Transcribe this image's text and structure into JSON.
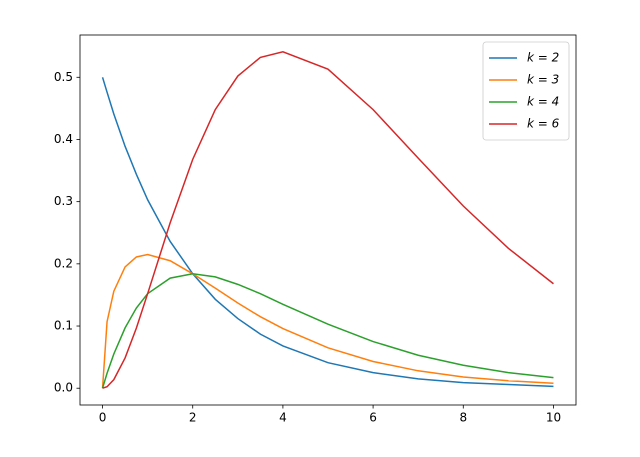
{
  "chart_data": {
    "type": "line",
    "x": [
      0,
      0.1,
      0.25,
      0.5,
      0.75,
      1,
      1.5,
      2,
      2.5,
      3,
      3.5,
      4,
      5,
      6,
      7,
      8,
      9,
      10
    ],
    "series": [
      {
        "name": "k = 2",
        "color": "#1f77b4",
        "values": [
          0.5,
          0.476,
          0.441,
          0.389,
          0.344,
          0.303,
          0.236,
          0.184,
          0.143,
          0.112,
          0.087,
          0.068,
          0.041,
          0.025,
          0.015,
          0.009,
          0.006,
          0.003
        ]
      },
      {
        "name": "k = 3",
        "color": "#ff7f0e",
        "values": [
          0,
          0.107,
          0.156,
          0.195,
          0.211,
          0.215,
          0.205,
          0.184,
          0.161,
          0.137,
          0.115,
          0.096,
          0.065,
          0.043,
          0.028,
          0.018,
          0.012,
          0.008
        ]
      },
      {
        "name": "k = 4",
        "color": "#2ca02c",
        "values": [
          0,
          0.024,
          0.055,
          0.097,
          0.129,
          0.152,
          0.177,
          0.184,
          0.179,
          0.167,
          0.152,
          0.135,
          0.103,
          0.075,
          0.053,
          0.037,
          0.025,
          0.017
        ]
      },
      {
        "name": "k = 6",
        "color": "#d62728",
        "values": [
          0,
          0.0024,
          0.0138,
          0.0487,
          0.0966,
          0.152,
          0.266,
          0.368,
          0.448,
          0.502,
          0.532,
          0.541,
          0.513,
          0.448,
          0.37,
          0.293,
          0.225,
          0.168
        ]
      }
    ],
    "xlim": [
      -0.5,
      10.5
    ],
    "xticks": [
      0,
      2,
      4,
      6,
      8,
      10
    ],
    "ylim": [
      -0.027,
      0.568
    ],
    "yticks": [
      {
        "value": 0,
        "label": "0.0"
      },
      0.1,
      0.2,
      0.3,
      0.4,
      0.5
    ],
    "legend": "upper right"
  }
}
